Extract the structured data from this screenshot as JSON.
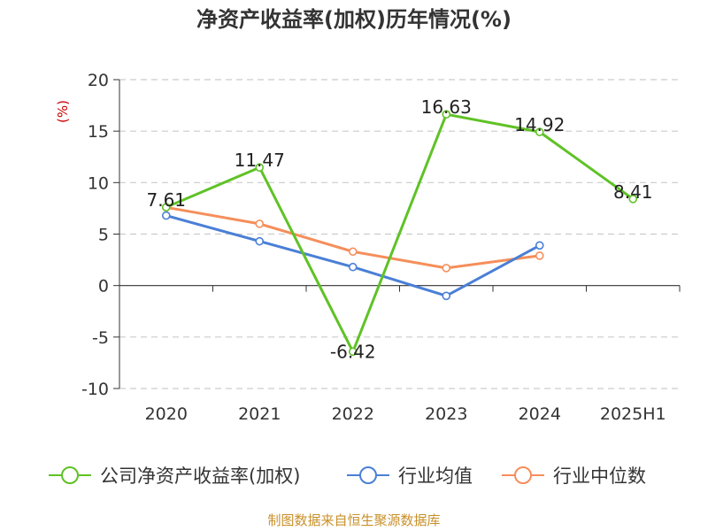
{
  "chart_data": {
    "type": "line",
    "title": "净资产收益率(加权)历年情况(%)",
    "ylabel": "(%)",
    "xlabel": "",
    "categories": [
      "2020",
      "2021",
      "2022",
      "2023",
      "2024",
      "2025H1"
    ],
    "ylim": [
      -10,
      20
    ],
    "yticks": [
      20,
      15,
      10,
      5,
      0,
      -5,
      -10
    ],
    "grid": "horizontal dashed",
    "legend_position": "bottom",
    "series": [
      {
        "name": "公司净资产收益率(加权)",
        "color": "#5fc226",
        "values": [
          7.61,
          11.47,
          -6.42,
          16.63,
          14.92,
          8.41
        ],
        "labels": [
          "7.61",
          "11.47",
          "-6.42",
          "16.63",
          "14.92",
          "8.41"
        ],
        "show_labels": true
      },
      {
        "name": "行业均值",
        "color": "#4a7fd6",
        "values": [
          6.8,
          4.3,
          1.8,
          -1.0,
          3.9,
          null
        ],
        "show_labels": false
      },
      {
        "name": "行业中位数",
        "color": "#f58e5a",
        "values": [
          7.6,
          6.0,
          3.3,
          1.7,
          2.9,
          null
        ],
        "show_labels": false
      }
    ]
  },
  "source_text": "制图数据来自恒生聚源数据库"
}
